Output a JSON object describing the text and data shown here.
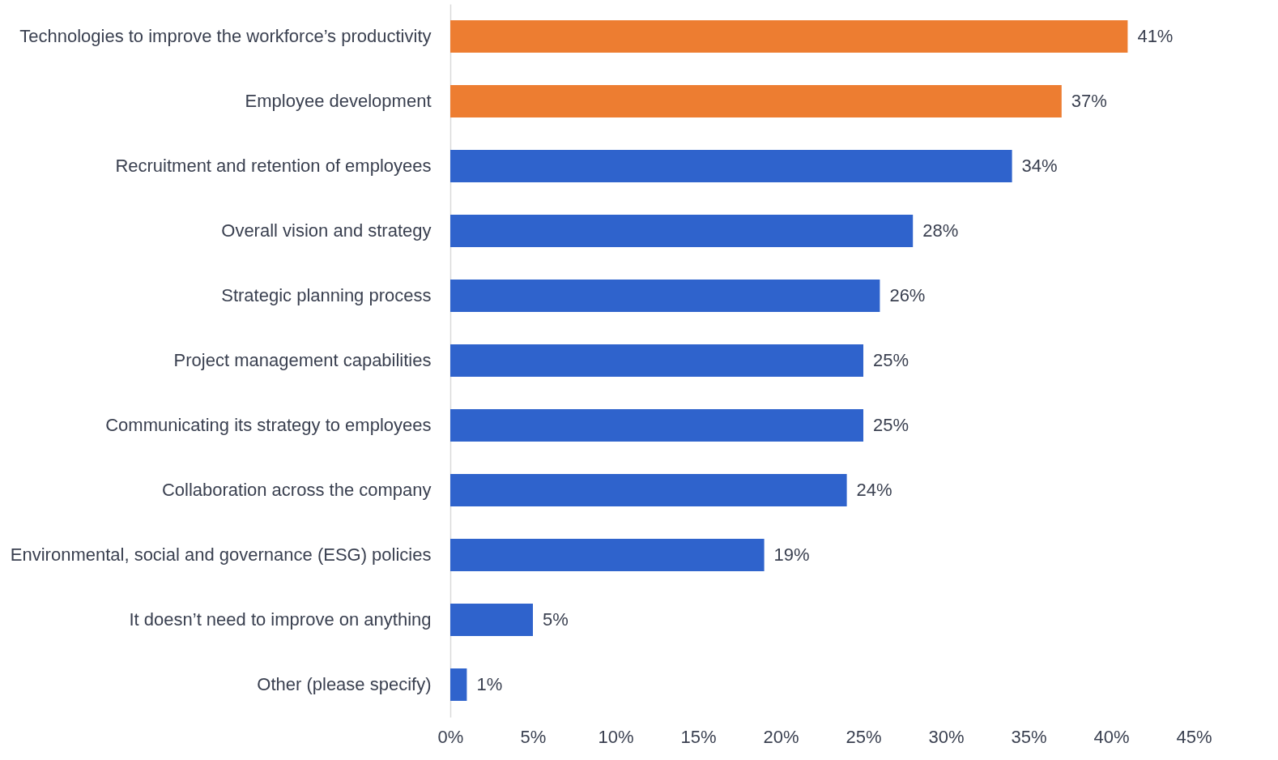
{
  "chart_data": {
    "type": "bar",
    "orientation": "horizontal",
    "categories": [
      "Technologies to improve the workforce’s productivity",
      "Employee development",
      "Recruitment and retention of employees",
      "Overall vision and strategy",
      "Strategic planning process",
      "Project management capabilities",
      "Communicating its strategy to employees",
      "Collaboration across the company",
      "Environmental, social and governance (ESG) policies",
      "It doesn’t need to improve on anything",
      "Other (please specify)"
    ],
    "values": [
      41,
      37,
      34,
      28,
      26,
      25,
      25,
      24,
      19,
      5,
      1
    ],
    "value_labels": [
      "41%",
      "37%",
      "34%",
      "28%",
      "26%",
      "25%",
      "25%",
      "24%",
      "19%",
      "5%",
      "1%"
    ],
    "colors": [
      "#ed7d31",
      "#ed7d31",
      "#2f63cc",
      "#2f63cc",
      "#2f63cc",
      "#2f63cc",
      "#2f63cc",
      "#2f63cc",
      "#2f63cc",
      "#2f63cc",
      "#2f63cc"
    ],
    "xlim": [
      0,
      45
    ],
    "xticks": [
      {
        "value": 0,
        "label": "0%"
      },
      {
        "value": 5,
        "label": "5%"
      },
      {
        "value": 10,
        "label": "10%"
      },
      {
        "value": 15,
        "label": "15%"
      },
      {
        "value": 20,
        "label": "20%"
      },
      {
        "value": 25,
        "label": "25%"
      },
      {
        "value": 30,
        "label": "30%"
      },
      {
        "value": 35,
        "label": "35%"
      },
      {
        "value": 40,
        "label": "40%"
      },
      {
        "value": 45,
        "label": "45%"
      }
    ]
  }
}
